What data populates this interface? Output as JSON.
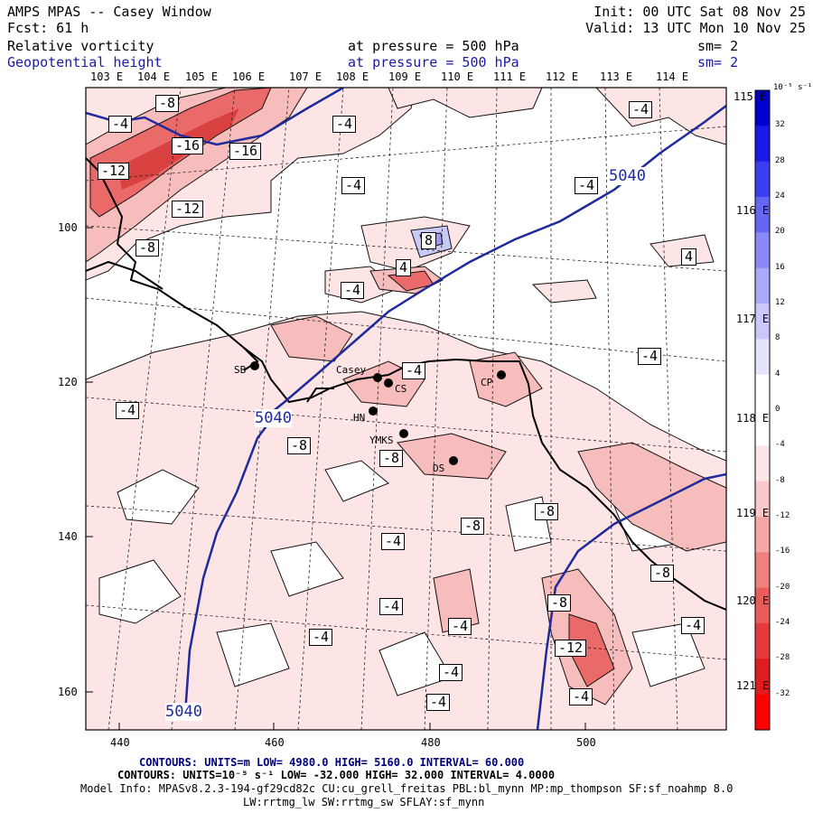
{
  "header": {
    "title": "AMPS MPAS -- Casey Window",
    "forecast": "Fcst:   61 h",
    "init": "Init: 00 UTC Sat 08 Nov 25",
    "valid": "Valid: 13 UTC Mon 10 Nov 25",
    "field1_name": "Relative vorticity",
    "field1_level": "at pressure =  500 hPa",
    "field1_smooth": "sm= 2",
    "field2_name": "Geopotential height",
    "field2_level": "at pressure =  500 hPa",
    "field2_smooth": "sm= 2"
  },
  "axes": {
    "x_ticks": [
      "440",
      "460",
      "480",
      "500"
    ],
    "y_ticks": [
      "100",
      "120",
      "140",
      "160"
    ],
    "lon_top": [
      "103 E",
      "104 E",
      "105 E",
      "106 E",
      "107 E",
      "108 E",
      "109 E",
      "110 E",
      "111 E",
      "112 E",
      "113 E",
      "114 E"
    ],
    "lon_right": [
      "115 E",
      "116 E",
      "117 E",
      "118 E",
      "119 E",
      "120 E",
      "121 E"
    ]
  },
  "colorbar": {
    "unit": "10⁻⁵ s⁻¹",
    "levels": [
      "32",
      "28",
      "24",
      "20",
      "16",
      "12",
      "8",
      "4",
      "0",
      "-4",
      "-8",
      "-12",
      "-16",
      "-20",
      "-24",
      "-28",
      "-32"
    ],
    "colors": [
      "#0000cc",
      "#1a1ae6",
      "#3d3df0",
      "#6666f5",
      "#8a8af7",
      "#aaaaf9",
      "#c8c8fb",
      "#e4e4fd",
      "#ffffff",
      "#ffffff",
      "#fde6e6",
      "#f9c8c8",
      "#f5a6a6",
      "#f08080",
      "#ea5c5c",
      "#e43a3a",
      "#de1e1e",
      "#ff0000"
    ]
  },
  "stations": [
    {
      "label": "SB"
    },
    {
      "label": "Casey"
    },
    {
      "label": "CS"
    },
    {
      "label": "CP"
    },
    {
      "label": "HN"
    },
    {
      "label": "YMKS"
    },
    {
      "label": "DS"
    }
  ],
  "contour_labels": {
    "height": [
      "5040",
      "5040",
      "5040"
    ],
    "vorticity": [
      "-8",
      "-4",
      "-16",
      "-16",
      "-12",
      "-12",
      "-8",
      "-4",
      "-4",
      "-4",
      "8",
      "4",
      "-4",
      "4",
      "-4",
      "-4",
      "-4",
      "-4",
      "-8",
      "-8",
      "-8",
      "-4",
      "-8",
      "-8",
      "-4",
      "-8",
      "-4",
      "-4",
      "-4",
      "-12",
      "-4",
      "-4",
      "-4"
    ]
  },
  "footer": {
    "line1": "CONTOURS:  UNITS=m  LOW=  4980.0         HIGH=  5160.0      INTERVAL=   60.000",
    "line2": "CONTOURS:  UNITS=10⁻⁵ s⁻¹  LOW= -32.000      HIGH=  32.000      INTERVAL=   4.0000",
    "line3": "Model Info: MPASv8.2.3-194-gf29cd82c CU:cu_grell_freitas PBL:bl_mynn MP:mp_thompson SF:sf_noahmp 8.0",
    "line4": "LW:rrtmg_lw SW:rrtmg_sw SFLAY:sf_mynn"
  }
}
